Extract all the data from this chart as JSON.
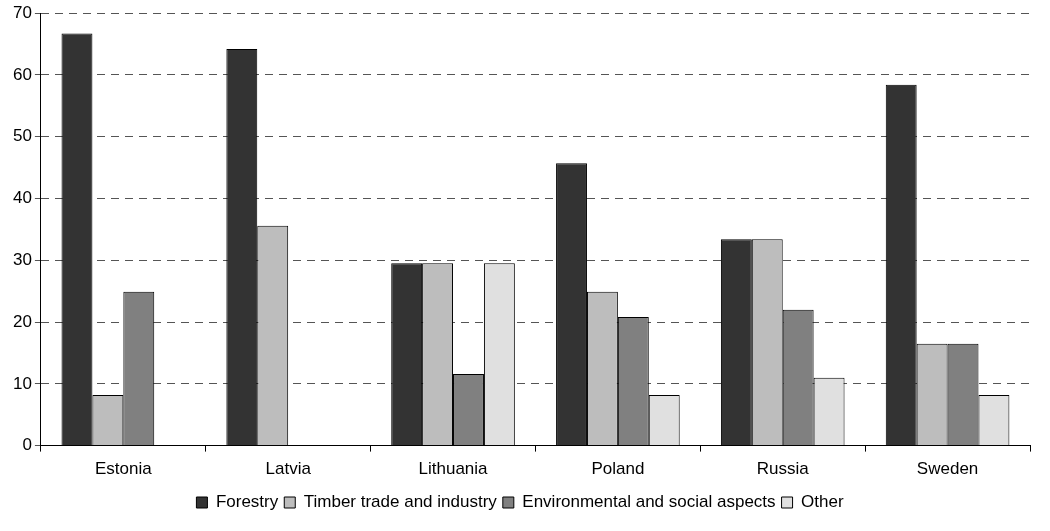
{
  "chart_data": {
    "type": "bar",
    "categories": [
      "Estonia",
      "Latvia",
      "Lithuania",
      "Poland",
      "Russia",
      "Sweden"
    ],
    "series": [
      {
        "name": "Forestry",
        "color": "#333333",
        "values": [
          66.7,
          64.2,
          29.5,
          45.7,
          33.4,
          58.4
        ]
      },
      {
        "name": "Timber trade and industry",
        "color": "#bdbdbd",
        "values": [
          8.2,
          35.6,
          29.5,
          24.9,
          33.4,
          16.5
        ]
      },
      {
        "name": "Environmental and social aspects",
        "color": "#808080",
        "values": [
          24.9,
          null,
          11.6,
          20.8,
          22.0,
          16.5
        ]
      },
      {
        "name": "Other",
        "color": "#e0e0e0",
        "values": [
          null,
          null,
          29.5,
          8.2,
          11.0,
          8.2
        ]
      }
    ],
    "ylim": [
      0,
      70
    ],
    "yticks": [
      0,
      10,
      20,
      30,
      40,
      50,
      60,
      70
    ],
    "grid": "y",
    "legend": "bottom"
  }
}
